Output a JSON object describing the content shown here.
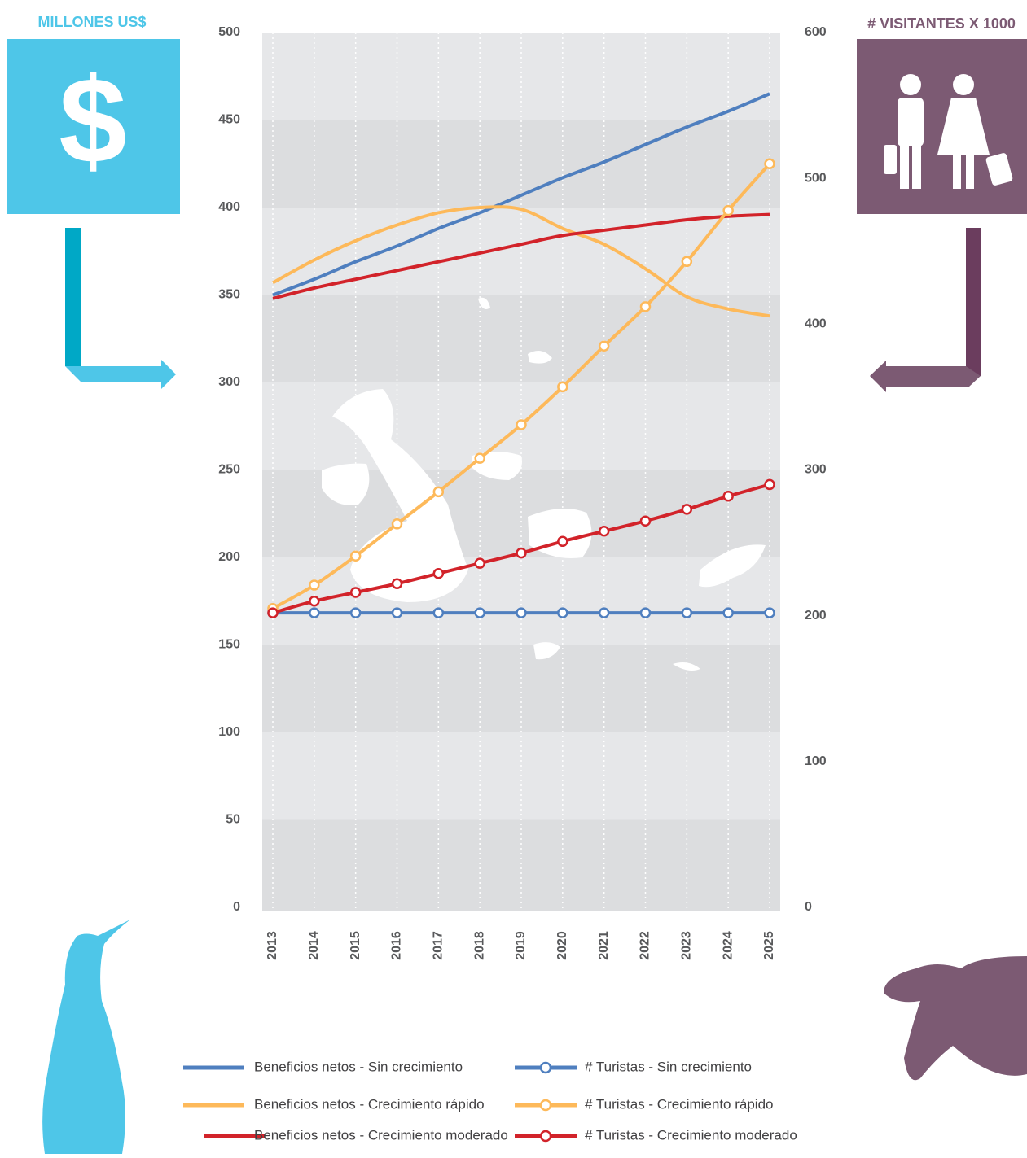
{
  "chart_data": {
    "type": "line",
    "ylabel": "MILLONES US$",
    "y2label": "# VISITANTES X 1000",
    "x": [
      2013,
      2014,
      2015,
      2016,
      2017,
      2018,
      2019,
      2020,
      2021,
      2022,
      2023,
      2024,
      2025
    ],
    "xlim": [
      2013,
      2025
    ],
    "xticks": [
      2013,
      2014,
      2015,
      2016,
      2017,
      2018,
      2019,
      2020,
      2021,
      2022,
      2023,
      2024,
      2025
    ],
    "ylim": [
      0,
      500
    ],
    "yticks": [
      0,
      50,
      100,
      150,
      200,
      250,
      300,
      350,
      400,
      450,
      500
    ],
    "y2lim": [
      0,
      600
    ],
    "y2ticks": [
      0,
      100,
      200,
      300,
      400,
      500,
      600
    ],
    "grid": true,
    "series": [
      {
        "name": "Beneficios netos - Sin crecimiento",
        "color": "#4f7fbf",
        "marker": false,
        "values": [
          350,
          359,
          369,
          378,
          388,
          397,
          407,
          417,
          426,
          436,
          446,
          455,
          465
        ]
      },
      {
        "name": "Beneficios netos - Crecimiento rápido",
        "color": "#fdb95a",
        "marker": false,
        "values": [
          357,
          370,
          381,
          390,
          397,
          400,
          399,
          388,
          379,
          365,
          349,
          342,
          338
        ]
      },
      {
        "name": "Beneficios netos -  Crecimiento moderado",
        "color": "#d2232a",
        "marker": false,
        "values": [
          348,
          354,
          359,
          364,
          369,
          374,
          379,
          384,
          387,
          390,
          393,
          395,
          396
        ]
      },
      {
        "name": "# Turistas - Sin crecimiento",
        "color": "#4f7fbf",
        "marker": true,
        "axis": "y2",
        "values": [
          202,
          202,
          202,
          202,
          202,
          202,
          202,
          202,
          202,
          202,
          202,
          202,
          202
        ]
      },
      {
        "name": "# Turistas - Crecimiento rápido",
        "color": "#fdb95a",
        "marker": true,
        "axis": "y2",
        "values": [
          205,
          221,
          241,
          263,
          285,
          308,
          331,
          357,
          385,
          412,
          443,
          478,
          510
        ]
      },
      {
        "name": "# Turistas - Crecimiento moderado",
        "color": "#d2232a",
        "marker": true,
        "axis": "y2",
        "values": [
          202,
          210,
          216,
          222,
          229,
          236,
          243,
          251,
          258,
          265,
          273,
          282,
          290
        ]
      }
    ]
  }
}
